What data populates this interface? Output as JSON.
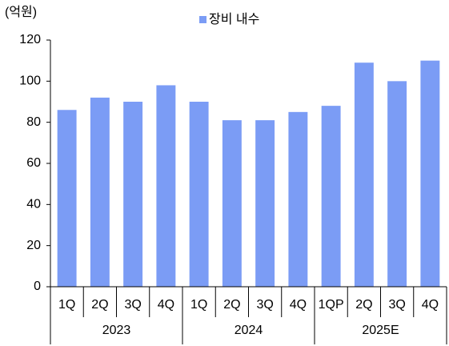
{
  "chart_data": {
    "type": "bar",
    "y_axis_label": "(억원)",
    "series": [
      {
        "name": "장비 내수",
        "color": "#7b9cf5",
        "values": [
          86,
          92,
          90,
          98,
          90,
          81,
          81,
          85,
          88,
          109,
          100,
          110
        ]
      }
    ],
    "categories": [
      "1Q",
      "2Q",
      "3Q",
      "4Q",
      "1Q",
      "2Q",
      "3Q",
      "4Q",
      "1QP",
      "2Q",
      "3Q",
      "4Q"
    ],
    "groups": [
      "2023",
      "2024",
      "2025E"
    ],
    "ylim": [
      0,
      120
    ],
    "yticks": [
      0,
      20,
      40,
      60,
      80,
      100,
      120
    ],
    "grid": false
  }
}
